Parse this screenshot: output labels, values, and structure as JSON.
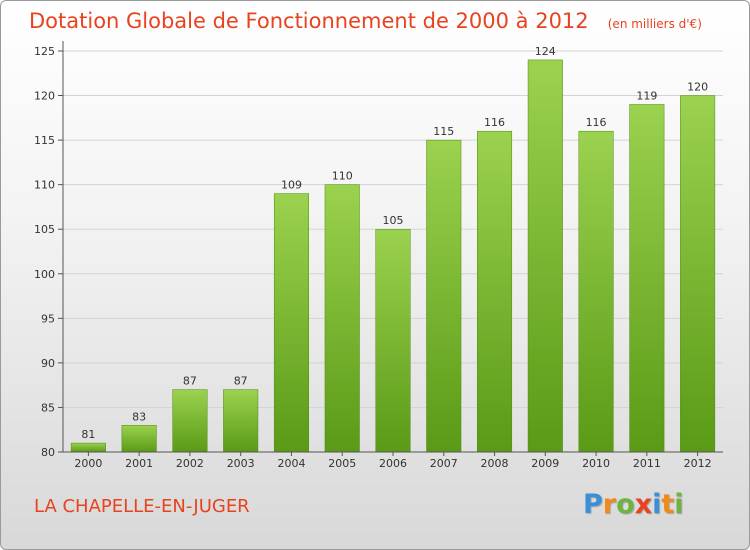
{
  "header": {
    "title": "Dotation Globale de Fonctionnement de 2000 à 2012",
    "unit": "(en milliers d'€)"
  },
  "footer": {
    "commune": "LA CHAPELLE-EN-JUGER",
    "logo_letters": [
      "P",
      "r",
      "o",
      "x",
      "i",
      "t",
      "i"
    ],
    "logo_colors": [
      "#3a8fd6",
      "#f08a1c",
      "#6cb33f",
      "#e8421f",
      "#3a8fd6",
      "#f08a1c",
      "#6cb33f"
    ]
  },
  "colors": {
    "title": "#e8421f",
    "bar_top": "#9bd24f",
    "bar_bottom": "#5a9a16",
    "grid": "#d4d4d4",
    "axis": "#555555"
  },
  "chart_data": {
    "type": "bar",
    "categories": [
      "2000",
      "2001",
      "2002",
      "2003",
      "2004",
      "2005",
      "2006",
      "2007",
      "2008",
      "2009",
      "2010",
      "2011",
      "2012"
    ],
    "values": [
      81,
      83,
      87,
      87,
      109,
      110,
      105,
      115,
      116,
      124,
      116,
      119,
      120
    ],
    "ylim": [
      80,
      125
    ],
    "yticks": [
      80,
      85,
      90,
      95,
      100,
      105,
      110,
      115,
      120,
      125
    ],
    "grid": true
  }
}
